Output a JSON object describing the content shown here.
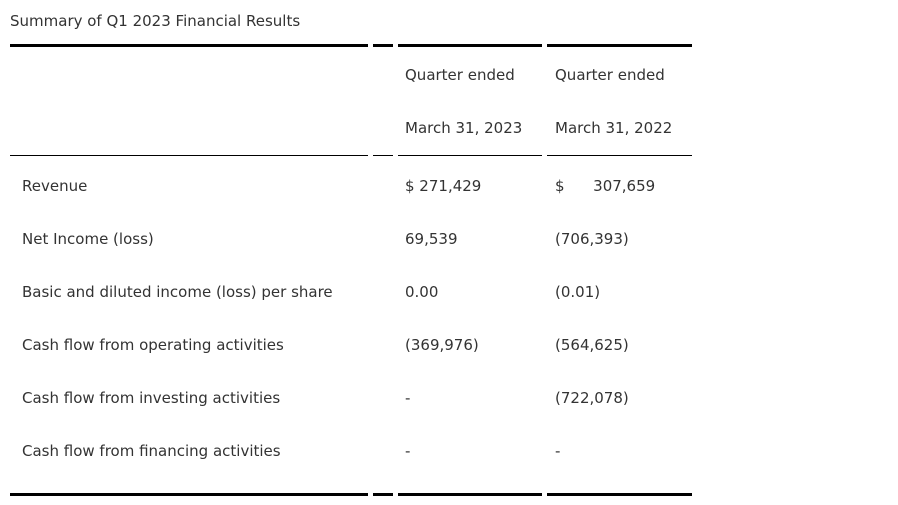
{
  "page": {
    "title": "Summary of Q1 2023 Financial Results"
  },
  "table": {
    "header": {
      "col_2023": {
        "line1": "Quarter ended",
        "line2": "March 31, 2023"
      },
      "col_2022": {
        "line1": "Quarter ended",
        "line2": "March 31, 2022"
      }
    },
    "rows": [
      {
        "label": "Revenue",
        "q1_2023": "$ 271,429",
        "q1_2022": "$      307,659"
      },
      {
        "label": "Net Income (loss)",
        "q1_2023": "69,539",
        "q1_2022": "(706,393)"
      },
      {
        "label": "Basic and diluted income (loss) per share",
        "q1_2023": "0.00",
        "q1_2022": "(0.01)"
      },
      {
        "label": "Cash flow from operating activities",
        "q1_2023": "(369,976)",
        "q1_2022": "(564,625)"
      },
      {
        "label": "Cash flow from investing activities",
        "q1_2023": "-",
        "q1_2022": "(722,078)"
      },
      {
        "label": "Cash flow from financing activities",
        "q1_2023": "-",
        "q1_2022": "-"
      }
    ],
    "colors": {
      "text": "#333333",
      "border": "#000000",
      "background": "#ffffff"
    }
  }
}
